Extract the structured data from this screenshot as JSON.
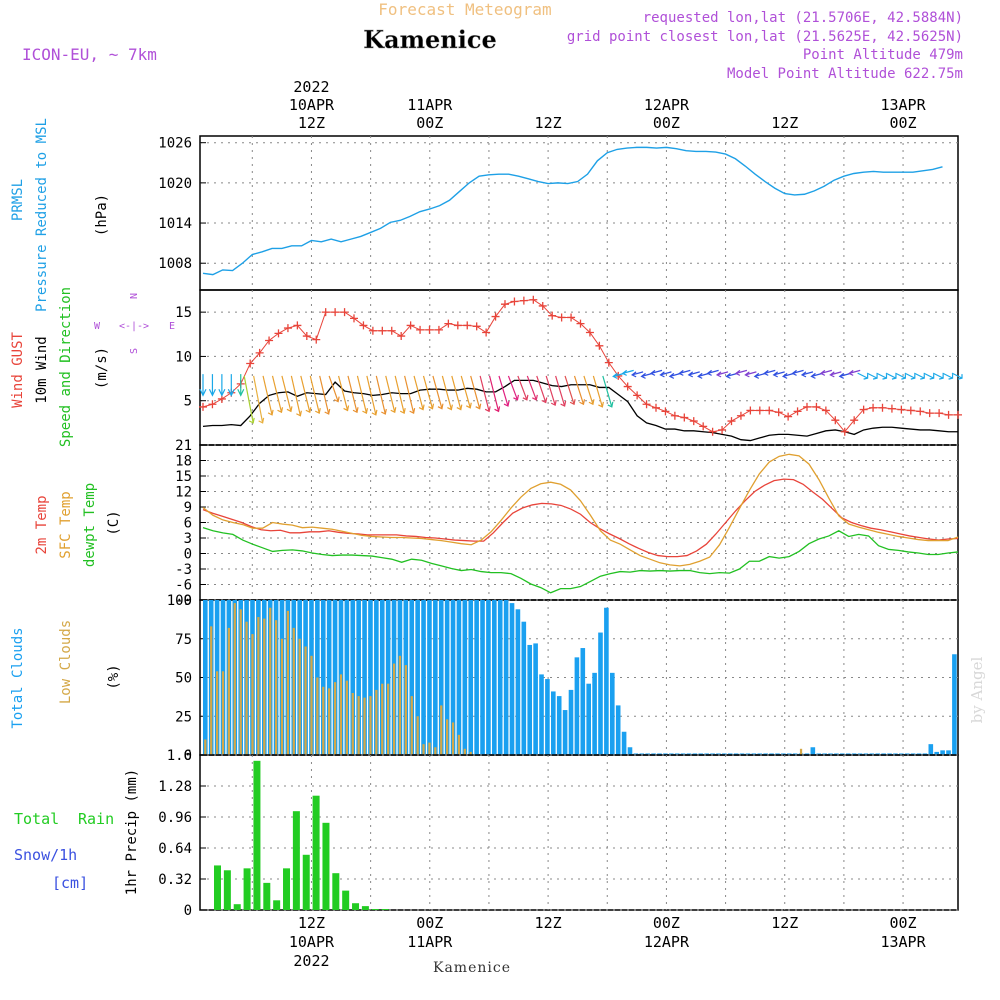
{
  "header": {
    "model": "ICON-EU, ~ 7km",
    "product": "Forecast Meteogram",
    "place": "Kamenice",
    "requested": "requested lon,lat (21.5706E, 42.5884N)",
    "gridpoint": "grid point closest lon,lat (21.5625E, 42.5625N)",
    "point_alt": "Point Altitude 479m",
    "model_alt": "Model Point Altitude 622.75m",
    "footer_place": "Kamenice",
    "watermark": "by Angel"
  },
  "colors": {
    "pressure": "#1ea0e6",
    "gust": "#e8443a",
    "wind": "#000000",
    "temp2m": "#e8443a",
    "sfc": "#e0a030",
    "dewpt": "#22c022",
    "total_clouds": "#1aa0f0",
    "low_clouds": "#d4a848",
    "rain": "#22cc22",
    "snow_label": "#3a50e0",
    "model_text": "#b050d8",
    "grid": "#888888"
  },
  "chart_data": [
    {
      "type": "line",
      "panel": "pressure",
      "label_lines": [
        "PRMSL",
        "Pressure Reduced to MSL"
      ],
      "unit": "(hPa)",
      "ylim": [
        1004,
        1027
      ],
      "yticks": [
        1008,
        1014,
        1020,
        1026
      ],
      "x_hours": [
        0,
        1,
        2,
        3,
        4,
        5,
        6,
        7,
        8,
        9,
        10,
        11,
        12,
        13,
        14,
        15,
        16,
        17,
        18,
        19,
        20,
        21,
        22,
        23,
        24,
        25,
        26,
        27,
        28,
        29,
        30,
        31,
        32,
        33,
        34,
        35,
        36,
        37,
        38,
        39,
        40,
        41,
        42,
        43,
        44,
        45,
        46,
        47,
        48,
        49,
        50,
        51,
        52,
        53,
        54,
        55,
        56,
        57,
        58,
        59,
        60,
        61,
        62,
        63,
        64,
        65,
        66,
        67,
        68,
        69,
        70,
        71,
        72,
        73,
        74,
        75
      ],
      "values": [
        1006.5,
        1006.3,
        1007,
        1006.9,
        1008,
        1009.3,
        1009.7,
        1010.2,
        1010.2,
        1010.6,
        1010.6,
        1011.4,
        1011.2,
        1011.6,
        1011.2,
        1011.6,
        1012,
        1012.6,
        1013.2,
        1014.1,
        1014.4,
        1015,
        1015.7,
        1016.1,
        1016.6,
        1017.4,
        1018.7,
        1020,
        1021,
        1021.2,
        1021.3,
        1021.3,
        1021,
        1020.6,
        1020.2,
        1019.9,
        1020,
        1019.9,
        1020.2,
        1021.3,
        1023.3,
        1024.5,
        1025,
        1025.2,
        1025.3,
        1025.3,
        1025.2,
        1025.3,
        1025.1,
        1024.8,
        1024.7,
        1024.7,
        1024.6,
        1024.3,
        1023.6,
        1022.5,
        1021.3,
        1020.2,
        1019.2,
        1018.4,
        1018.2,
        1018.3,
        1018.8,
        1019.5,
        1020.4,
        1021,
        1021.4,
        1021.6,
        1021.7,
        1021.6,
        1021.6,
        1021.6,
        1021.6,
        1021.8,
        1022,
        1022.4
      ]
    },
    {
      "type": "line",
      "panel": "wind",
      "label_lines": [
        "Wind GUST",
        "10m Wind",
        "Speed and Direction"
      ],
      "unit": "(m/s)",
      "compass": [
        "N",
        "W",
        "E",
        "S"
      ],
      "ylim": [
        0,
        17.5
      ],
      "yticks": [
        5,
        10,
        15
      ],
      "series": [
        {
          "name": "Wind GUST",
          "values": [
            4.3,
            4.6,
            5.2,
            5.9,
            6.9,
            9.2,
            10.4,
            11.8,
            12.6,
            13.2,
            13.5,
            12.3,
            11.9,
            15,
            15,
            15,
            14.3,
            13.5,
            12.9,
            12.9,
            12.9,
            12.3,
            13.5,
            13,
            13,
            13,
            13.7,
            13.5,
            13.5,
            13.4,
            12.7,
            14.5,
            15.9,
            16.2,
            16.3,
            16.4,
            15.7,
            14.6,
            14.4,
            14.4,
            13.7,
            12.7,
            11.2,
            9.3,
            7.8,
            6.6,
            5.6,
            4.6,
            4.2,
            3.8,
            3.3,
            3.1,
            2.7,
            2.1,
            1.5,
            1.7,
            2.7,
            3.3,
            3.9,
            3.9,
            3.9,
            3.7,
            3.2,
            3.8,
            4.3,
            4.3,
            3.9,
            2.8,
            1.5,
            2.8,
            4,
            4.2,
            4.2,
            4.1,
            4,
            3.9,
            3.8,
            3.6,
            3.6,
            3.4,
            3.4
          ]
        },
        {
          "name": "10m Wind",
          "values": [
            2.1,
            2.2,
            2.2,
            2.3,
            2.2,
            3.3,
            4.7,
            5.6,
            5.9,
            6,
            5.5,
            5.9,
            5.8,
            5.7,
            7.1,
            6.1,
            5.9,
            5.8,
            5.6,
            5.7,
            5.9,
            5.8,
            5.8,
            6.2,
            6.3,
            6.3,
            6.2,
            6.2,
            6.4,
            6.3,
            6,
            6,
            6.6,
            7.3,
            7.3,
            7.3,
            7,
            6.7,
            6.6,
            6.8,
            6.8,
            6.8,
            6.5,
            6.5,
            5.7,
            4.9,
            3.3,
            2.5,
            2.2,
            1.8,
            1.8,
            1.6,
            1.6,
            1.5,
            1.4,
            1.2,
            1,
            0.6,
            0.5,
            0.8,
            1.1,
            1.2,
            1.2,
            1.1,
            1,
            1.3,
            1.6,
            1.7,
            1.5,
            1.2,
            1.7,
            1.9,
            2,
            2,
            1.9,
            1.8,
            1.7,
            1.7,
            1.6,
            1.5,
            1.5
          ]
        }
      ],
      "barb_colors": [
        "#1aa8e8",
        "#1aa8e8",
        "#1aa8e8",
        "#1aa8e8",
        "#20c0a0",
        "#a8d030",
        "#e8b040",
        "#e8a030",
        "#e8a030",
        "#e8a030",
        "#e8a030",
        "#e8a030",
        "#e8a030",
        "#e89030",
        "#e89030",
        "#e8a030",
        "#e89030",
        "#e8a030",
        "#e8a030",
        "#e89030",
        "#e8a030",
        "#e8a030",
        "#e89030",
        "#e8a030",
        "#e8a030",
        "#e89030",
        "#e8a030",
        "#e8a030",
        "#e8a030",
        "#e89030",
        "#e04060",
        "#e02070",
        "#e02080",
        "#e02080",
        "#e04060",
        "#e03070",
        "#e04060",
        "#e04060",
        "#e04060",
        "#e05050",
        "#e89030",
        "#e8a030",
        "#e8a030",
        "#20c0a0",
        "#1aa8e8",
        "#1aa8e8",
        "#3050e0",
        "#3050e0",
        "#3050e0",
        "#3050e0",
        "#3050e0",
        "#3050e0",
        "#3050e0",
        "#3050e0",
        "#3050e0",
        "#8040d0",
        "#3050e0",
        "#8040d0",
        "#8040d0",
        "#3050e0",
        "#3050e0",
        "#3050e0",
        "#3050e0",
        "#3050e0",
        "#3050e0",
        "#3050e0",
        "#8040d0",
        "#8040d0",
        "#3050e0",
        "#8040d0",
        "#1aa8e8",
        "#1aa8e8",
        "#1aa8e8",
        "#1aa8e8",
        "#1aa8e8",
        "#1aa8e8",
        "#1aa8e8",
        "#1aa8e8",
        "#1aa8e8",
        "#1aa8e8",
        "#1aa8e8"
      ]
    },
    {
      "type": "line",
      "panel": "temperature",
      "label_lines": [
        "2m Temp",
        "SFC Temp",
        "dewpt Temp"
      ],
      "unit": "(C)",
      "ylim": [
        -9,
        21
      ],
      "yticks": [
        -9,
        -6,
        -3,
        0,
        3,
        6,
        9,
        12,
        15,
        18,
        21
      ],
      "series": [
        {
          "name": "2m Temp",
          "values": [
            8.5,
            7.8,
            7.2,
            6.6,
            6,
            5.2,
            4.6,
            4.4,
            4.5,
            4,
            4,
            4.2,
            4.2,
            4.4,
            4.1,
            3.9,
            3.8,
            3.6,
            3.6,
            3.6,
            3.6,
            3.4,
            3.3,
            3.1,
            3,
            2.8,
            2.6,
            2.5,
            2.4,
            2.4,
            4,
            6,
            7.8,
            8.8,
            9.4,
            9.7,
            9.6,
            9.3,
            8.6,
            7.6,
            6,
            4.8,
            3.8,
            2.9,
            1.9,
            1,
            0.2,
            -0.4,
            -0.6,
            -0.6,
            -0.4,
            0.5,
            1.8,
            3.8,
            6,
            8.2,
            10.2,
            12,
            13.2,
            14.1,
            14.4,
            14.3,
            13.4,
            11.9,
            10.5,
            8.7,
            6.9,
            6,
            5.4,
            4.9,
            4.6,
            4.2,
            3.8,
            3.4,
            3.1,
            2.8,
            2.6,
            2.8,
            2.9
          ]
        },
        {
          "name": "SFC Temp",
          "values": [
            8.9,
            7.4,
            6.5,
            6,
            5.6,
            4.9,
            4.9,
            6,
            5.7,
            5.5,
            5,
            5.1,
            4.9,
            4.7,
            4.3,
            3.9,
            3.5,
            3.3,
            3.2,
            3.1,
            3.1,
            3,
            2.9,
            2.7,
            2.5,
            2.2,
            1.9,
            1.7,
            2.6,
            4.2,
            6.4,
            8.8,
            10.9,
            12.6,
            13.5,
            13.8,
            13.4,
            12.3,
            10.2,
            7.4,
            4.4,
            2.6,
            1.8,
            0.7,
            -0.4,
            -1.1,
            -1.8,
            -2.2,
            -2.4,
            -2.1,
            -1.5,
            -0.7,
            1.7,
            5.1,
            8.7,
            12.2,
            15.4,
            17.7,
            18.8,
            19.2,
            18.9,
            17.3,
            14.3,
            10.7,
            7.3,
            5.7,
            5.1,
            4.6,
            4.1,
            3.7,
            3.3,
            3,
            2.7,
            2.5,
            2.5,
            2.5,
            3.2
          ]
        },
        {
          "name": "dewpt Temp",
          "values": [
            5,
            4.4,
            4,
            3.7,
            2.6,
            1.8,
            1.1,
            0.4,
            0.6,
            0.7,
            0.5,
            0.1,
            -0.2,
            -0.4,
            -0.3,
            -0.3,
            -0.4,
            -0.5,
            -0.8,
            -1.1,
            -1.7,
            -1.1,
            -1.3,
            -1.9,
            -2.4,
            -2.9,
            -3.3,
            -3.1,
            -3.5,
            -3.7,
            -3.7,
            -3.9,
            -4.8,
            -5.9,
            -6.6,
            -7.6,
            -6.8,
            -6.8,
            -6.4,
            -5.4,
            -4.4,
            -3.9,
            -3.5,
            -3.6,
            -3.3,
            -3.4,
            -3.3,
            -3.4,
            -3.3,
            -3.3,
            -3.7,
            -3.9,
            -3.7,
            -3.8,
            -3,
            -1.5,
            -1.5,
            -0.6,
            -0.9,
            -0.6,
            0.4,
            1.9,
            2.8,
            3.4,
            4.4,
            3.3,
            3.7,
            3.4,
            1.5,
            0.8,
            0.6,
            0.3,
            0.1,
            -0.2,
            -0.2,
            0.1,
            0.3
          ]
        }
      ]
    },
    {
      "type": "bar",
      "panel": "clouds",
      "label_lines": [
        "Total Clouds",
        "Low Clouds"
      ],
      "unit": "(%)",
      "ylim": [
        0,
        100
      ],
      "yticks": [
        0,
        25,
        50,
        75,
        100
      ],
      "series": [
        {
          "name": "Total Clouds",
          "values": [
            100,
            100,
            100,
            100,
            100,
            100,
            100,
            100,
            100,
            100,
            100,
            100,
            100,
            100,
            100,
            100,
            100,
            100,
            100,
            100,
            100,
            100,
            100,
            100,
            100,
            100,
            100,
            100,
            100,
            100,
            100,
            100,
            100,
            100,
            100,
            100,
            100,
            100,
            100,
            100,
            100,
            100,
            100,
            100,
            100,
            100,
            100,
            100,
            100,
            100,
            100,
            100,
            98,
            94,
            86,
            71,
            72,
            52,
            49,
            41,
            38,
            29,
            42,
            63,
            69,
            46,
            53,
            79,
            95,
            53,
            32,
            15,
            5,
            1,
            1,
            1,
            1,
            1,
            1,
            1,
            1,
            1,
            1,
            1,
            1,
            1,
            1,
            1,
            1,
            1,
            1,
            1,
            1,
            1,
            1,
            1,
            1,
            1,
            1,
            1,
            1,
            1,
            1,
            5,
            1,
            1,
            1,
            1,
            1,
            1,
            1,
            1,
            1,
            1,
            1,
            1,
            1,
            1,
            1,
            1,
            1,
            1,
            1,
            7,
            2,
            3,
            3,
            65
          ]
        },
        {
          "name": "Low Clouds",
          "values": [
            10,
            83,
            54,
            54,
            82,
            98,
            94,
            86,
            78,
            89,
            88,
            95,
            87,
            75,
            93,
            82,
            75,
            70,
            64,
            50,
            44,
            43,
            47,
            52,
            48,
            40,
            38,
            37,
            38,
            42,
            46,
            46,
            59,
            64,
            58,
            38,
            25,
            7,
            8,
            5,
            32,
            23,
            21,
            13,
            4,
            2,
            0,
            0,
            0,
            0,
            0,
            0,
            0,
            0,
            0,
            0,
            0,
            0,
            0,
            0,
            0,
            0,
            0,
            0,
            0,
            0,
            0,
            0,
            0,
            0,
            0,
            0,
            0,
            0,
            0,
            0,
            0,
            0,
            0,
            0,
            0,
            0,
            0,
            0,
            0,
            0,
            0,
            0,
            0,
            0,
            0,
            0,
            0,
            0,
            0,
            0,
            0,
            0,
            0,
            0,
            0,
            4,
            0,
            0,
            0,
            0,
            0,
            0,
            0,
            0,
            0,
            0,
            0,
            0,
            0,
            0,
            0,
            0,
            0,
            0,
            0,
            0,
            0,
            0,
            0,
            0
          ]
        }
      ]
    },
    {
      "type": "bar",
      "panel": "precip",
      "label_lines": [
        "Total",
        "Rain",
        "Snow/1h",
        "[cm]"
      ],
      "unit": "1hr Precip (mm)",
      "ylim": [
        0,
        1.6
      ],
      "yticks": [
        0,
        0.32,
        0.64,
        0.96,
        1.28,
        1.6
      ],
      "ytick_labels": [
        "0",
        "0.32",
        "0.64",
        "0.96",
        "1.28",
        "1.6"
      ],
      "series": [
        {
          "name": "Total Rain",
          "values": [
            0.46,
            0.41,
            0.06,
            0.43,
            1.54,
            0.28,
            0.1,
            0.43,
            1.02,
            0.57,
            1.18,
            0.9,
            0.38,
            0.2,
            0.07,
            0.04,
            0.01,
            0.01
          ]
        }
      ]
    }
  ],
  "time_axis": {
    "top_labels": [
      {
        "day": "2022",
        "date": "10APR",
        "hour": "12Z"
      },
      {
        "date": "11APR",
        "hour": "00Z"
      },
      {
        "hour": "12Z"
      },
      {
        "date": "12APR",
        "hour": "00Z"
      },
      {
        "hour": "12Z"
      },
      {
        "date": "13APR",
        "hour": "00Z"
      }
    ],
    "bottom_labels": [
      {
        "hour": "12Z",
        "date": "10APR",
        "year": "2022"
      },
      {
        "hour": "00Z",
        "date": "11APR"
      },
      {
        "hour": "12Z"
      },
      {
        "hour": "00Z",
        "date": "12APR"
      },
      {
        "hour": "12Z"
      },
      {
        "hour": "00Z",
        "date": "13APR"
      }
    ]
  }
}
